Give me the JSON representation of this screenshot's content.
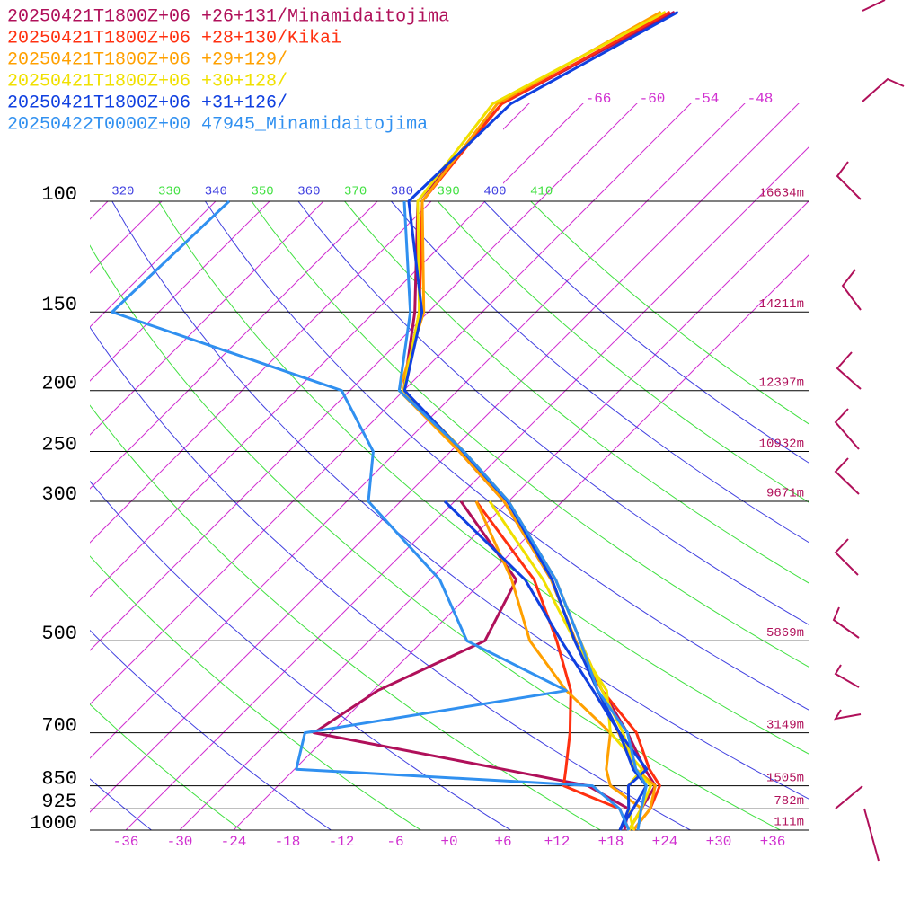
{
  "chart_data": {
    "type": "skewt",
    "ylog": true,
    "ylim": [
      1000,
      100
    ],
    "xlim": [
      -40,
      40
    ],
    "yticks": [
      100,
      150,
      200,
      250,
      300,
      500,
      700,
      850,
      925,
      1000
    ],
    "height_labels": [
      "16634m",
      "14211m",
      "12397m",
      "10932m",
      "9671m",
      "5869m",
      "3149m",
      "1505m",
      "782m",
      "111m"
    ],
    "xticks": [
      -36,
      -30,
      -24,
      -18,
      -12,
      -6,
      {
        "value": 0,
        "label": "+0"
      },
      {
        "value": 6,
        "label": "+6"
      },
      {
        "value": 12,
        "label": "+12"
      },
      {
        "value": 18,
        "label": "+18"
      },
      {
        "value": 24,
        "label": "+24"
      },
      {
        "value": 30,
        "label": "+30"
      },
      {
        "value": 36,
        "label": "+36"
      }
    ],
    "isotherm_labels": [
      -66,
      -60,
      -54,
      -48
    ],
    "theta_labels": [
      320,
      330,
      340,
      350,
      360,
      370,
      380,
      390,
      400,
      410
    ],
    "x": [
      1000,
      925,
      850,
      800,
      700,
      600,
      500,
      400,
      300,
      250,
      200,
      150,
      100,
      70,
      50
    ],
    "series": [
      {
        "name": "20250421T1800Z+06 +26+131/Minamidaitojima",
        "color": "#b0105a",
        "values": [
          20,
          19,
          18,
          15,
          9,
          1.5,
          -7,
          -16.5,
          -30.5,
          -41,
          -54,
          -61.5,
          -73.5,
          -75,
          -66
        ],
        "dewpoints": [
          19.5,
          17.6,
          10.5,
          -0.8,
          -25.9,
          -23.5,
          -17.1,
          -20.4,
          -35.3,
          null,
          null,
          null,
          null,
          null,
          null
        ]
      },
      {
        "name": "20250421T1800Z+06 +28+130/Kikai",
        "color": "#ff3010",
        "values": [
          20.5,
          20,
          18.5,
          15.5,
          10,
          1.5,
          -6.5,
          -16,
          -30,
          -40.5,
          -54,
          -61,
          -73,
          -75,
          -66.5
        ],
        "dewpoints": [
          20,
          16.6,
          7.8,
          6.2,
          2.6,
          -2,
          -9.1,
          -18.4,
          -33.6,
          null,
          null,
          null,
          null,
          null,
          null
        ]
      },
      {
        "name": "20250421T1800Z+06 +29+129/",
        "color": "#ffa000",
        "values": [
          20.5,
          20,
          18,
          14,
          8,
          1,
          -7,
          -16.5,
          -30.5,
          -41,
          -54.5,
          -60.5,
          -73,
          -75.5,
          -67.5
        ],
        "dewpoints": [
          20,
          19.1,
          13,
          10.7,
          7.1,
          -2.5,
          -12.1,
          -20.9,
          -33.6,
          null,
          null,
          null,
          null,
          null,
          null
        ]
      },
      {
        "name": "20250421T1800Z+06 +30+128/",
        "color": "#f0e000",
        "values": [
          20,
          19,
          17.5,
          14,
          8.5,
          1.5,
          -6.5,
          -16,
          -30,
          -40.5,
          -54,
          -61,
          -73.5,
          -76,
          -67
        ],
        "dewpoints": [
          20.5,
          17.6,
          15,
          14.7,
          7.1,
          2,
          -7.1,
          -17.4,
          -32.1,
          null,
          null,
          null,
          null,
          null,
          null
        ]
      },
      {
        "name": "20250421T1800Z+06 +31+126/",
        "color": "#1040e0",
        "values": [
          19,
          18.1,
          17,
          13.7,
          8.1,
          1,
          -7.1,
          -16.4,
          -30.1,
          -40.6,
          -53.9,
          -60.7,
          -74.5,
          -74,
          -65.6
        ],
        "dewpoints": [
          19,
          17.6,
          15,
          15.2,
          8.1,
          0.5,
          -8.6,
          -19.4,
          -37.1,
          null,
          null,
          null,
          null,
          null,
          null
        ]
      },
      {
        "name": "20250422T0000Z+00 47945_Minamidaitojima",
        "color": "#3090f0",
        "values": [
          21,
          19,
          17,
          14,
          9,
          1,
          -6.5,
          -16,
          -30,
          -40.5,
          -54.5,
          -62,
          -75,
          null,
          null
        ],
        "dewpoints": [
          20,
          16.6,
          11,
          -23.8,
          -26.9,
          -2.5,
          -19.1,
          -28.9,
          -45.6,
          -50.6,
          -60.9,
          -95.2,
          -94.5,
          null,
          null
        ]
      }
    ]
  }
}
